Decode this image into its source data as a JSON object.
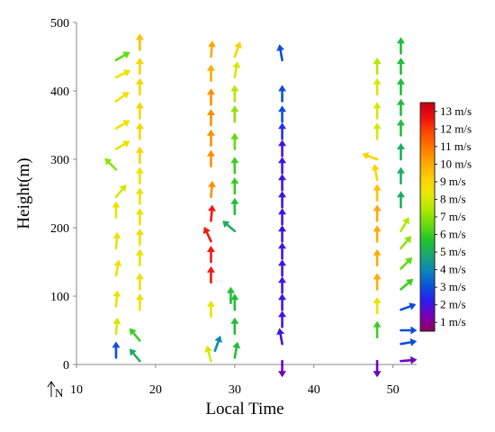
{
  "chart_data": {
    "type": "wind-profile",
    "xlabel": "Local Time",
    "ylabel": "Height(m)",
    "north_label": "N",
    "xlim": [
      10,
      53
    ],
    "ylim": [
      0,
      500
    ],
    "xticks": [
      10,
      20,
      30,
      40,
      50
    ],
    "yticks": [
      0,
      100,
      200,
      300,
      400,
      500
    ],
    "colorbar": {
      "min": 0.5,
      "max": 13.5,
      "labels": [
        "13 m/s",
        "12 m/s",
        "11 m/s",
        "10 m/s",
        "9 m/s",
        "8 m/s",
        "7 m/s",
        "6 m/s",
        "5 m/s",
        "4 m/s",
        "3 m/s",
        "2 m/s",
        "1 m/s"
      ],
      "colors": [
        "#8b0055",
        "#7a00b8",
        "#2b1cf0",
        "#0a55d8",
        "#0a88b8",
        "#1aa870",
        "#22c428",
        "#66dd10",
        "#b0e800",
        "#e8e800",
        "#ffd000",
        "#ffa800",
        "#ff7a00",
        "#ff4a00",
        "#f01010",
        "#c00010"
      ]
    },
    "series": [
      {
        "x": 15,
        "vectors": [
          {
            "h": 10,
            "speed": 3,
            "dir": 0
          },
          {
            "h": 45,
            "speed": 8,
            "dir": 5
          },
          {
            "h": 85,
            "speed": 8.5,
            "dir": 5
          },
          {
            "h": 130,
            "speed": 8.5,
            "dir": 10
          },
          {
            "h": 170,
            "speed": 8.5,
            "dir": 5
          },
          {
            "h": 215,
            "speed": 8.5,
            "dir": 0
          },
          {
            "h": 245,
            "speed": 8,
            "dir": 40
          },
          {
            "h": 285,
            "speed": 7,
            "dir": -45
          },
          {
            "h": 315,
            "speed": 8.5,
            "dir": 60
          },
          {
            "h": 345,
            "speed": 8.5,
            "dir": 60
          },
          {
            "h": 385,
            "speed": 8.5,
            "dir": 55
          },
          {
            "h": 420,
            "speed": 8.5,
            "dir": 65
          },
          {
            "h": 445,
            "speed": 6.5,
            "dir": 60
          }
        ]
      },
      {
        "x": 18,
        "vectors": [
          {
            "h": 5,
            "speed": 5,
            "dir": -40
          },
          {
            "h": 35,
            "speed": 6,
            "dir": -40
          },
          {
            "h": 80,
            "speed": 8.5,
            "dir": 0
          },
          {
            "h": 110,
            "speed": 8.5,
            "dir": 0
          },
          {
            "h": 145,
            "speed": 8.5,
            "dir": 0
          },
          {
            "h": 175,
            "speed": 8.5,
            "dir": 0
          },
          {
            "h": 205,
            "speed": 8.5,
            "dir": 0
          },
          {
            "h": 235,
            "speed": 8.5,
            "dir": 0
          },
          {
            "h": 265,
            "speed": 8.5,
            "dir": 0
          },
          {
            "h": 295,
            "speed": 9,
            "dir": 0
          },
          {
            "h": 330,
            "speed": 9,
            "dir": 0
          },
          {
            "h": 360,
            "speed": 9,
            "dir": 0
          },
          {
            "h": 395,
            "speed": 9,
            "dir": 0
          },
          {
            "h": 425,
            "speed": 9,
            "dir": 0
          },
          {
            "h": 460,
            "speed": 9.5,
            "dir": 0
          }
        ]
      },
      {
        "x": 27,
        "vectors": [
          {
            "h": 5,
            "speed": 8,
            "dir": -15
          },
          {
            "h": 70,
            "speed": 8.5,
            "dir": 0
          },
          {
            "h": 120,
            "speed": 12.5,
            "dir": 0
          },
          {
            "h": 150,
            "speed": 12.5,
            "dir": 0
          },
          {
            "h": 180,
            "speed": 12.5,
            "dir": -25
          },
          {
            "h": 210,
            "speed": 12.5,
            "dir": 5
          },
          {
            "h": 245,
            "speed": 10.5,
            "dir": 5
          },
          {
            "h": 290,
            "speed": 10.5,
            "dir": 0
          },
          {
            "h": 320,
            "speed": 10.5,
            "dir": 0
          },
          {
            "h": 350,
            "speed": 10.5,
            "dir": 0
          },
          {
            "h": 380,
            "speed": 10.5,
            "dir": 0
          },
          {
            "h": 415,
            "speed": 10,
            "dir": 0
          },
          {
            "h": 450,
            "speed": 10,
            "dir": 5
          }
        ]
      },
      {
        "x": 27.5,
        "vectors": [
          {
            "h": 20,
            "speed": 4,
            "dir": 20
          }
        ]
      },
      {
        "x": 30,
        "vectors": [
          {
            "h": 10,
            "speed": 5.5,
            "dir": 10
          },
          {
            "h": 45,
            "speed": 5.5,
            "dir": 0
          },
          {
            "h": 80,
            "speed": 5.5,
            "dir": 0
          },
          {
            "h": 195,
            "speed": 5,
            "dir": -50
          },
          {
            "h": 220,
            "speed": 5.5,
            "dir": 0
          },
          {
            "h": 250,
            "speed": 6,
            "dir": 0
          },
          {
            "h": 280,
            "speed": 6,
            "dir": 0
          },
          {
            "h": 315,
            "speed": 6.5,
            "dir": 0
          },
          {
            "h": 355,
            "speed": 7,
            "dir": 0
          },
          {
            "h": 385,
            "speed": 7.5,
            "dir": 0
          },
          {
            "h": 420,
            "speed": 8,
            "dir": 10
          },
          {
            "h": 450,
            "speed": 9,
            "dir": 20
          }
        ]
      },
      {
        "x": 29.5,
        "vectors": [
          {
            "h": 90,
            "speed": 5.5,
            "dir": 0
          }
        ]
      },
      {
        "x": 36,
        "vectors": [
          {
            "h": 5,
            "speed": 1.5,
            "dir": 180
          },
          {
            "h": 30,
            "speed": 2,
            "dir": -10
          },
          {
            "h": 55,
            "speed": 2,
            "dir": 0
          },
          {
            "h": 80,
            "speed": 2,
            "dir": 0
          },
          {
            "h": 105,
            "speed": 2,
            "dir": 0
          },
          {
            "h": 130,
            "speed": 2,
            "dir": 0
          },
          {
            "h": 155,
            "speed": 2,
            "dir": 0
          },
          {
            "h": 180,
            "speed": 2,
            "dir": 0
          },
          {
            "h": 205,
            "speed": 2,
            "dir": 0
          },
          {
            "h": 230,
            "speed": 2,
            "dir": 0
          },
          {
            "h": 255,
            "speed": 2,
            "dir": 0
          },
          {
            "h": 280,
            "speed": 2,
            "dir": 0
          },
          {
            "h": 305,
            "speed": 2,
            "dir": 0
          },
          {
            "h": 330,
            "speed": 2.5,
            "dir": 0
          },
          {
            "h": 355,
            "speed": 3,
            "dir": 0
          },
          {
            "h": 385,
            "speed": 3,
            "dir": 0
          },
          {
            "h": 445,
            "speed": 3,
            "dir": -10
          }
        ]
      },
      {
        "x": 48,
        "vectors": [
          {
            "h": 5,
            "speed": 1.5,
            "dir": 180
          },
          {
            "h": 40,
            "speed": 6,
            "dir": 0
          },
          {
            "h": 75,
            "speed": 8.5,
            "dir": 0
          },
          {
            "h": 110,
            "speed": 10,
            "dir": 0
          },
          {
            "h": 145,
            "speed": 10,
            "dir": 0
          },
          {
            "h": 180,
            "speed": 10,
            "dir": 0
          },
          {
            "h": 210,
            "speed": 10,
            "dir": 0
          },
          {
            "h": 240,
            "speed": 9.5,
            "dir": 0
          },
          {
            "h": 270,
            "speed": 9,
            "dir": -10
          },
          {
            "h": 300,
            "speed": 9,
            "dir": -70
          },
          {
            "h": 330,
            "speed": 8,
            "dir": 0
          },
          {
            "h": 360,
            "speed": 8,
            "dir": 0
          },
          {
            "h": 395,
            "speed": 8,
            "dir": 0
          },
          {
            "h": 425,
            "speed": 7.5,
            "dir": 0
          }
        ]
      },
      {
        "x": 51,
        "vectors": [
          {
            "h": 5,
            "speed": 1.5,
            "dir": 85
          },
          {
            "h": 30,
            "speed": 3,
            "dir": 80
          },
          {
            "h": 50,
            "speed": 3,
            "dir": 90
          },
          {
            "h": 80,
            "speed": 3,
            "dir": 70
          },
          {
            "h": 110,
            "speed": 6,
            "dir": 50
          },
          {
            "h": 140,
            "speed": 6.5,
            "dir": 45
          },
          {
            "h": 170,
            "speed": 7,
            "dir": 40
          },
          {
            "h": 195,
            "speed": 7.5,
            "dir": 30
          },
          {
            "h": 230,
            "speed": 5,
            "dir": 0
          },
          {
            "h": 265,
            "speed": 5,
            "dir": 0
          },
          {
            "h": 300,
            "speed": 5,
            "dir": 0
          },
          {
            "h": 335,
            "speed": 5.5,
            "dir": 0
          },
          {
            "h": 365,
            "speed": 5.5,
            "dir": 0
          },
          {
            "h": 395,
            "speed": 5.5,
            "dir": 0
          },
          {
            "h": 425,
            "speed": 5.5,
            "dir": 0
          },
          {
            "h": 455,
            "speed": 5.5,
            "dir": 0
          }
        ]
      }
    ]
  }
}
